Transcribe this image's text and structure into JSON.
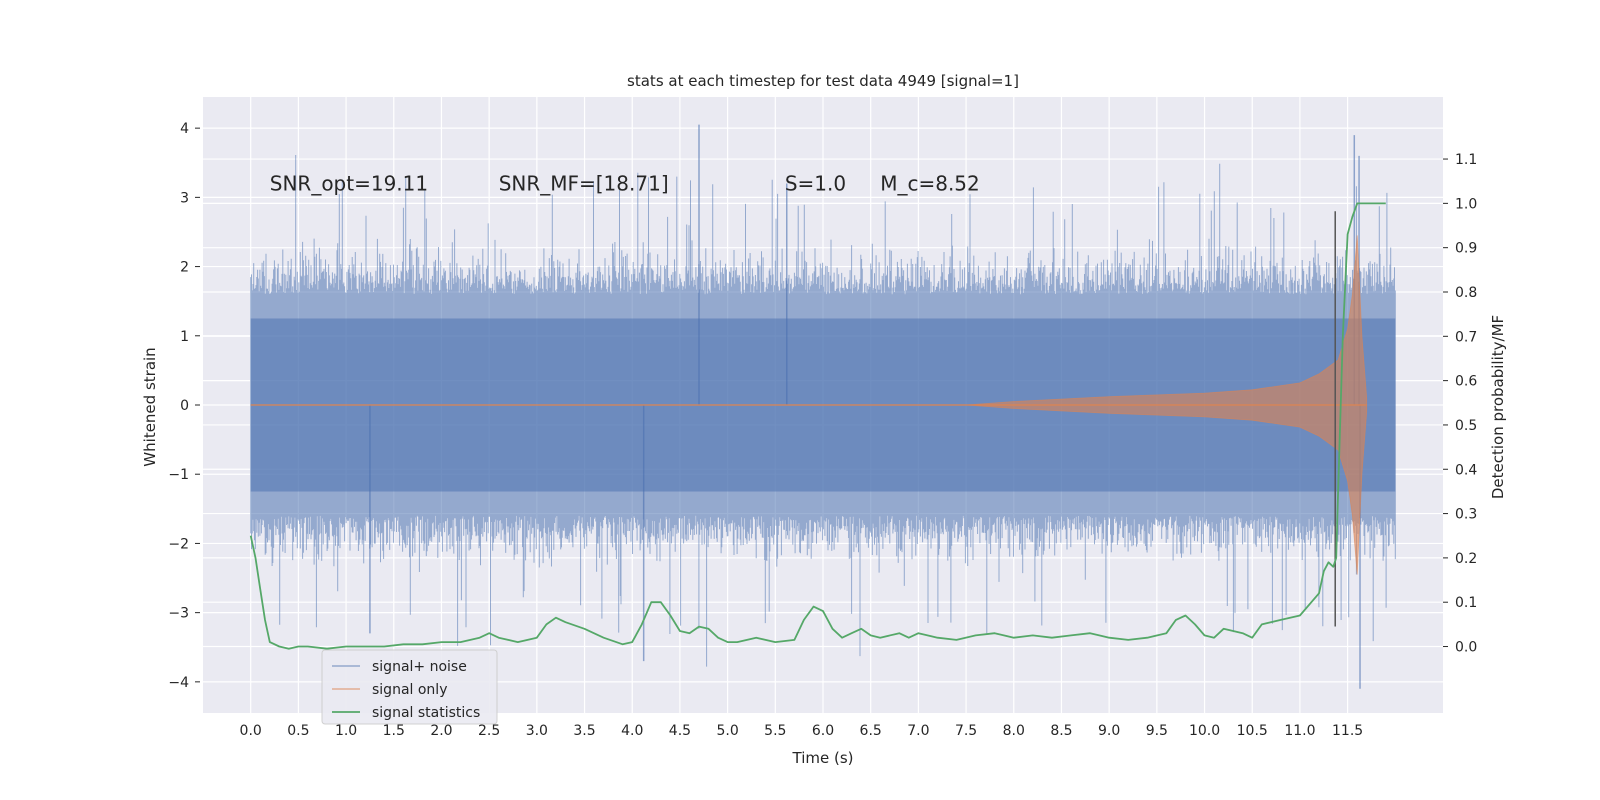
{
  "chart_data": {
    "type": "line",
    "title": "stats at each timestep for test data 4949 [signal=1]",
    "xlabel": "Time (s)",
    "ylabel": "Whitened strain",
    "ylabel_right": "Detection probability/MF",
    "xlim": [
      -0.5,
      12.5
    ],
    "ylim": [
      -4.45,
      4.45
    ],
    "ylim_right": [
      -0.15,
      1.24
    ],
    "x_ticks": [
      "0.0",
      "0.5",
      "1.0",
      "1.5",
      "2.0",
      "2.5",
      "3.0",
      "3.5",
      "4.0",
      "4.5",
      "5.0",
      "5.5",
      "6.0",
      "6.5",
      "7.0",
      "7.5",
      "8.0",
      "8.5",
      "9.0",
      "9.5",
      "10.0",
      "10.5",
      "11.0",
      "11.5"
    ],
    "y_ticks": [
      "4",
      "3",
      "2",
      "1",
      "0",
      "−1",
      "−2",
      "−3",
      "−4"
    ],
    "y_ticks_right": [
      "1.1",
      "1.0",
      "0.9",
      "0.8",
      "0.7",
      "0.6",
      "0.5",
      "0.4",
      "0.3",
      "0.2",
      "0.1",
      "0.0"
    ],
    "grid": true,
    "background_color": "#eaeaf2",
    "legend_position": "lower-left",
    "annotations": [
      {
        "text": "SNR_opt=19.11",
        "x": 0.2,
        "y": 3.2
      },
      {
        "text": "SNR_MF=[18.71]",
        "x": 2.6,
        "y": 3.2
      },
      {
        "text": "S=1.0",
        "x": 5.6,
        "y": 3.2
      },
      {
        "text": "M_c=8.52",
        "x": 6.6,
        "y": 3.2
      }
    ],
    "series": [
      {
        "name": "signal+ noise",
        "color": "#4c72b0",
        "kind": "noise-band",
        "x_range": [
          0.0,
          12.0
        ],
        "core_amplitude": 1.25,
        "typical_peak": 2.1,
        "max_value": 4.05,
        "min_value": -4.1
      },
      {
        "name": "signal only",
        "color": "#dd8452",
        "kind": "chirp-envelope",
        "envelope": {
          "x": [
            0.0,
            7.5,
            8.0,
            9.0,
            10.0,
            10.5,
            11.0,
            11.2,
            11.4,
            11.5,
            11.55,
            11.6,
            11.65,
            11.7
          ],
          "y": [
            0.0,
            0.0,
            0.05,
            0.12,
            0.17,
            0.22,
            0.32,
            0.45,
            0.65,
            1.1,
            1.6,
            2.45,
            1.0,
            0.1
          ]
        }
      },
      {
        "name": "signal statistics",
        "color": "#55a868",
        "axis": "right",
        "x": [
          0.0,
          0.05,
          0.1,
          0.15,
          0.2,
          0.3,
          0.4,
          0.5,
          0.6,
          0.8,
          1.0,
          1.2,
          1.4,
          1.6,
          1.8,
          2.0,
          2.2,
          2.4,
          2.5,
          2.6,
          2.8,
          3.0,
          3.1,
          3.2,
          3.3,
          3.5,
          3.7,
          3.9,
          4.0,
          4.1,
          4.2,
          4.3,
          4.4,
          4.5,
          4.6,
          4.7,
          4.8,
          4.9,
          5.0,
          5.1,
          5.3,
          5.5,
          5.7,
          5.8,
          5.9,
          6.0,
          6.1,
          6.2,
          6.3,
          6.4,
          6.5,
          6.6,
          6.8,
          6.9,
          7.0,
          7.2,
          7.4,
          7.6,
          7.8,
          8.0,
          8.2,
          8.4,
          8.6,
          8.8,
          9.0,
          9.2,
          9.4,
          9.6,
          9.7,
          9.8,
          9.9,
          10.0,
          10.1,
          10.2,
          10.4,
          10.5,
          10.6,
          10.8,
          11.0,
          11.2,
          11.25,
          11.3,
          11.35,
          11.38,
          11.4,
          11.45,
          11.5,
          11.55,
          11.6,
          11.9
        ],
        "y": [
          0.25,
          0.2,
          0.13,
          0.06,
          0.01,
          0.0,
          -0.005,
          0.0,
          0.0,
          -0.005,
          0.0,
          0.0,
          0.0,
          0.005,
          0.005,
          0.01,
          0.01,
          0.02,
          0.03,
          0.02,
          0.01,
          0.02,
          0.05,
          0.065,
          0.055,
          0.04,
          0.02,
          0.005,
          0.01,
          0.05,
          0.1,
          0.1,
          0.07,
          0.035,
          0.03,
          0.045,
          0.04,
          0.02,
          0.01,
          0.01,
          0.02,
          0.01,
          0.015,
          0.06,
          0.09,
          0.08,
          0.04,
          0.02,
          0.03,
          0.04,
          0.025,
          0.02,
          0.03,
          0.02,
          0.03,
          0.02,
          0.015,
          0.025,
          0.03,
          0.02,
          0.025,
          0.02,
          0.025,
          0.03,
          0.02,
          0.015,
          0.02,
          0.03,
          0.06,
          0.07,
          0.05,
          0.025,
          0.02,
          0.04,
          0.03,
          0.02,
          0.05,
          0.06,
          0.07,
          0.12,
          0.17,
          0.19,
          0.18,
          0.2,
          0.35,
          0.7,
          0.93,
          0.97,
          1.0,
          1.0
        ]
      }
    ],
    "markers": [
      {
        "kind": "vertical-line",
        "x": 11.37,
        "y_from": -3.2,
        "y_to": 2.8,
        "color": "#555555"
      }
    ]
  }
}
